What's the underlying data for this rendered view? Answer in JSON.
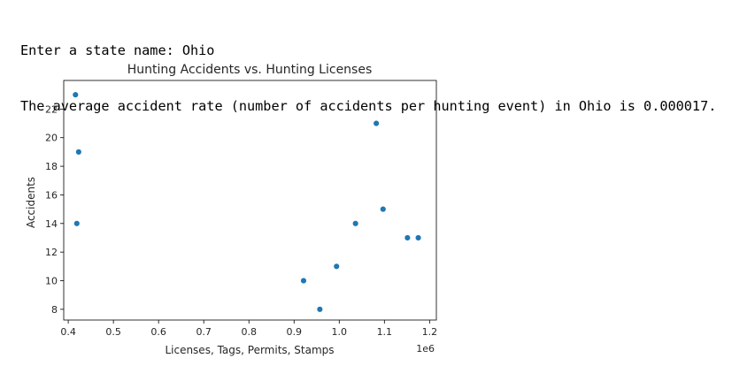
{
  "console": {
    "prompt_line": "Enter a state name: Ohio",
    "result_line": "The average accident rate (number of accidents per hunting event) in Ohio is 0.000017."
  },
  "chart_data": {
    "type": "scatter",
    "title": "Hunting Accidents vs. Hunting Licenses",
    "xlabel": "Licenses, Tags, Permits, Stamps",
    "ylabel": "Accidents",
    "x_offset_label": "1e6",
    "x_scale_note": "tick labels in units of 1e6",
    "xlim": [
      0.39,
      1.215
    ],
    "ylim": [
      7.25,
      24.0
    ],
    "x_ticks": [
      0.4,
      0.5,
      0.6,
      0.7,
      0.8,
      0.9,
      1.0,
      1.1,
      1.2
    ],
    "x_tick_labels": [
      "0.4",
      "0.5",
      "0.6",
      "0.7",
      "0.8",
      "0.9",
      "1.0",
      "1.1",
      "1.2"
    ],
    "y_ticks": [
      8,
      10,
      12,
      14,
      16,
      18,
      20,
      22
    ],
    "y_tick_labels": [
      "8",
      "10",
      "12",
      "14",
      "16",
      "18",
      "20",
      "22"
    ],
    "grid": false,
    "legend": "none",
    "marker_color": "#1f77b4",
    "points": [
      {
        "x": 416000,
        "y": 23
      },
      {
        "x": 423000,
        "y": 19
      },
      {
        "x": 419000,
        "y": 14
      },
      {
        "x": 921000,
        "y": 10
      },
      {
        "x": 957000,
        "y": 8
      },
      {
        "x": 994000,
        "y": 11
      },
      {
        "x": 1036000,
        "y": 14
      },
      {
        "x": 1082000,
        "y": 21
      },
      {
        "x": 1097000,
        "y": 15
      },
      {
        "x": 1151000,
        "y": 13
      },
      {
        "x": 1175000,
        "y": 13
      }
    ]
  }
}
